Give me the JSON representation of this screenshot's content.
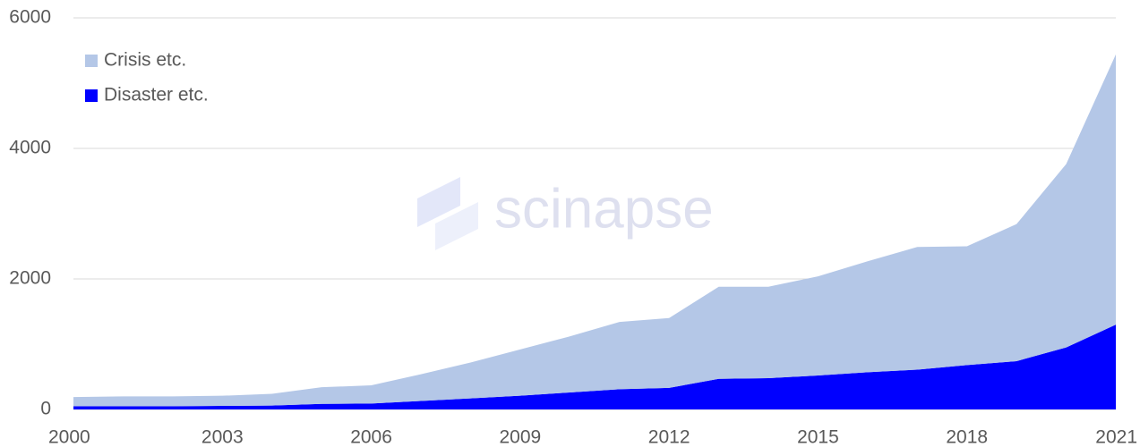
{
  "chart_data": {
    "type": "stacked-area",
    "x": [
      2000,
      2001,
      2002,
      2003,
      2004,
      2005,
      2006,
      2007,
      2008,
      2009,
      2010,
      2011,
      2012,
      2013,
      2014,
      2015,
      2016,
      2017,
      2018,
      2019,
      2020,
      2021
    ],
    "series": [
      {
        "name": "Disaster etc.",
        "color": "#0000ff",
        "values": [
          50,
          50,
          50,
          55,
          60,
          85,
          90,
          130,
          170,
          210,
          260,
          310,
          330,
          470,
          480,
          520,
          570,
          610,
          680,
          740,
          950,
          1300
        ]
      },
      {
        "name": "Crisis etc.",
        "color": "#b4c7e7",
        "values": [
          140,
          150,
          150,
          155,
          180,
          255,
          280,
          410,
          550,
          710,
          860,
          1030,
          1070,
          1410,
          1400,
          1520,
          1700,
          1880,
          1820,
          2100,
          2810,
          4140
        ]
      }
    ],
    "xlim": [
      2000,
      2021
    ],
    "xticks": [
      2000,
      2003,
      2006,
      2009,
      2012,
      2015,
      2018,
      2021
    ],
    "ylim": [
      0,
      6000
    ],
    "yticks": [
      0,
      2000,
      4000,
      6000
    ],
    "grid": true,
    "legend": "top-left",
    "watermark": "scinapse"
  }
}
